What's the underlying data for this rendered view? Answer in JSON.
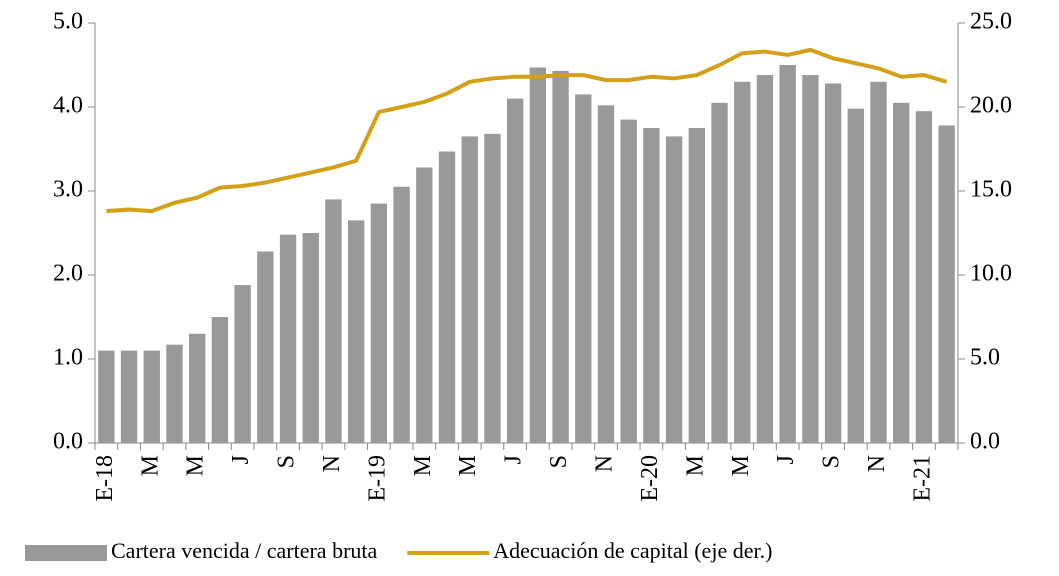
{
  "chart_data": {
    "type": "bar",
    "categories": [
      "E-18",
      null,
      "M",
      null,
      "M",
      null,
      "J",
      null,
      "S",
      null,
      "N",
      null,
      "E-19",
      null,
      "M",
      null,
      "M",
      null,
      "J",
      null,
      "S",
      null,
      "N",
      null,
      "E-20",
      null,
      "M",
      null,
      "M",
      null,
      "J",
      null,
      "S",
      null,
      "N",
      null,
      "E-21",
      null
    ],
    "series": [
      {
        "name": "Cartera vencida / cartera bruta",
        "type": "bar",
        "color": "#999999",
        "values": [
          1.1,
          1.1,
          1.1,
          1.17,
          1.3,
          1.5,
          1.88,
          2.28,
          2.48,
          2.5,
          2.9,
          2.65,
          2.85,
          3.05,
          3.28,
          3.47,
          3.65,
          3.68,
          4.1,
          4.47,
          4.43,
          4.15,
          4.02,
          3.85,
          3.75,
          3.65,
          3.75,
          4.05,
          4.3,
          4.38,
          4.5,
          4.38,
          4.28,
          3.98,
          4.3,
          4.05,
          3.95,
          3.78
        ]
      },
      {
        "name": "Adecuación de capital (eje der.)",
        "type": "line",
        "axis": "y2",
        "color": "#d4a017",
        "values": [
          13.8,
          13.9,
          13.8,
          14.3,
          14.6,
          15.2,
          15.3,
          15.5,
          15.8,
          16.1,
          16.4,
          16.8,
          19.7,
          20.0,
          20.3,
          20.8,
          21.5,
          21.7,
          21.8,
          21.8,
          21.9,
          21.9,
          21.6,
          21.6,
          21.8,
          21.7,
          21.9,
          22.5,
          23.2,
          23.3,
          23.1,
          23.4,
          22.9,
          22.6,
          22.3,
          21.8,
          21.9,
          21.5
        ]
      }
    ],
    "ylim": [
      0,
      5
    ],
    "yticks": [
      {
        "value": 0,
        "label": "0.0"
      },
      {
        "value": 1,
        "label": "1.0"
      },
      {
        "value": 2,
        "label": "2.0"
      },
      {
        "value": 3,
        "label": "3.0"
      },
      {
        "value": 4,
        "label": "4.0"
      },
      {
        "value": 5,
        "label": "5.0"
      }
    ],
    "y2lim": [
      0,
      25
    ],
    "y2ticks": [
      {
        "value": 0,
        "label": "0.0"
      },
      {
        "value": 5,
        "label": "5.0"
      },
      {
        "value": 10,
        "label": "10.0"
      },
      {
        "value": 15,
        "label": "15.0"
      },
      {
        "value": 20,
        "label": "20.0"
      },
      {
        "value": 25,
        "label": "25.0"
      }
    ],
    "grid": false,
    "legend": "bottom"
  }
}
